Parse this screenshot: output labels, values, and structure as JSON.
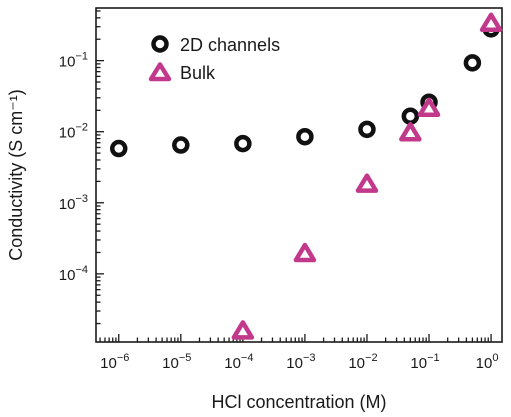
{
  "chart_data": {
    "type": "scatter",
    "title": "",
    "xlabel": "HCl concentration (M)",
    "ylabel": "Conductivity (S cm⁻¹)",
    "xscale": "log",
    "yscale": "log",
    "xlim": [
      4.3e-07,
      1.5
    ],
    "ylim": [
      1.1e-05,
      0.55
    ],
    "grid": false,
    "legend_position": "top-left",
    "x_ticks": [
      {
        "value": 1e-06,
        "base": "10",
        "exp": "−6"
      },
      {
        "value": 1e-05,
        "base": "10",
        "exp": "−5"
      },
      {
        "value": 0.0001,
        "base": "10",
        "exp": "−4"
      },
      {
        "value": 0.001,
        "base": "10",
        "exp": "−3"
      },
      {
        "value": 0.01,
        "base": "10",
        "exp": "−2"
      },
      {
        "value": 0.1,
        "base": "10",
        "exp": "−1"
      },
      {
        "value": 1,
        "base": "10",
        "exp": "0"
      }
    ],
    "y_ticks": [
      {
        "value": 0.0001,
        "base": "10",
        "exp": "−4"
      },
      {
        "value": 0.001,
        "base": "10",
        "exp": "−3"
      },
      {
        "value": 0.01,
        "base": "10",
        "exp": "−2"
      },
      {
        "value": 0.1,
        "base": "10",
        "exp": "−1"
      }
    ],
    "series": [
      {
        "name": "2D channels",
        "marker": "circle",
        "color": "#111111",
        "points": [
          {
            "x": 1e-06,
            "y": 0.0058
          },
          {
            "x": 1e-05,
            "y": 0.0065
          },
          {
            "x": 0.0001,
            "y": 0.0068
          },
          {
            "x": 0.001,
            "y": 0.0085
          },
          {
            "x": 0.01,
            "y": 0.0108
          },
          {
            "x": 0.05,
            "y": 0.0165
          },
          {
            "x": 0.1,
            "y": 0.026
          },
          {
            "x": 0.5,
            "y": 0.093
          },
          {
            "x": 1,
            "y": 0.28
          }
        ]
      },
      {
        "name": "Bulk",
        "marker": "triangle",
        "color": "#c2388b",
        "points": [
          {
            "x": 0.0001,
            "y": 1.55e-05
          },
          {
            "x": 0.001,
            "y": 0.00019
          },
          {
            "x": 0.01,
            "y": 0.0018
          },
          {
            "x": 0.05,
            "y": 0.0095
          },
          {
            "x": 0.1,
            "y": 0.021
          },
          {
            "x": 1,
            "y": 0.33
          }
        ]
      }
    ]
  }
}
